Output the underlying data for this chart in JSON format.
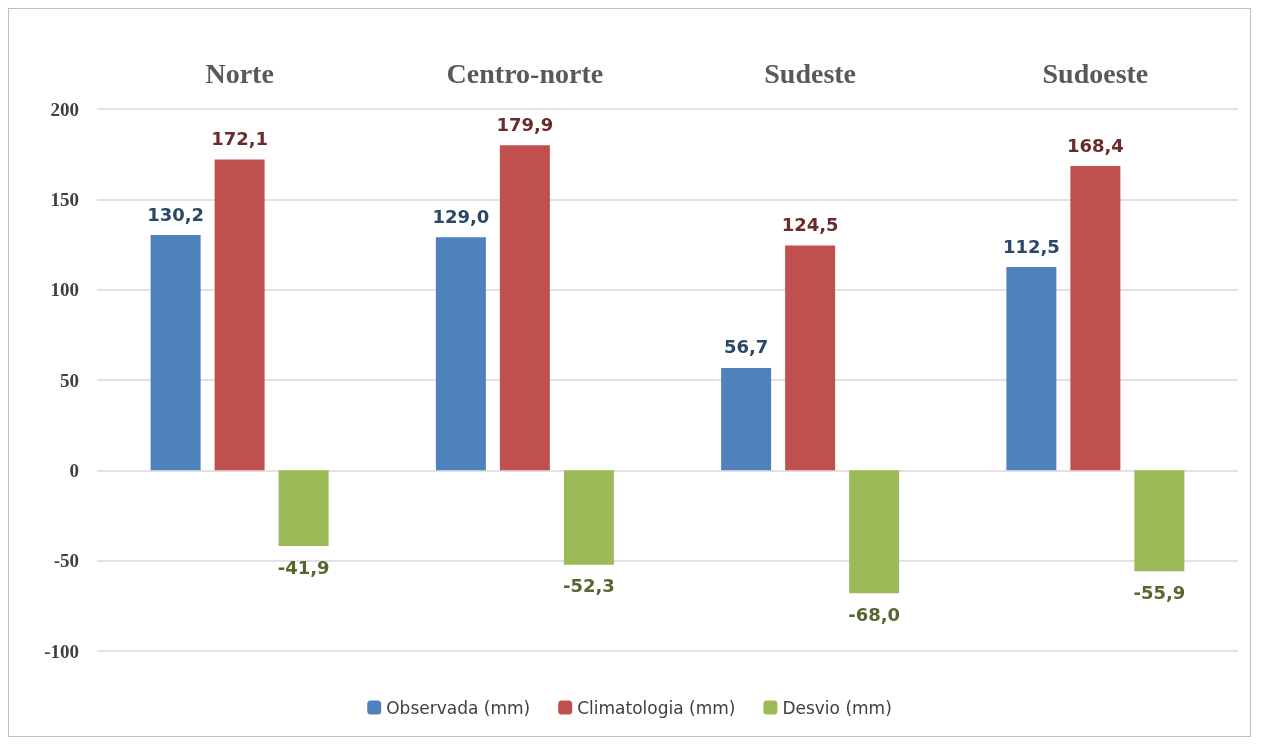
{
  "chart_data": {
    "type": "bar",
    "categories": [
      "Norte",
      "Centro-norte",
      "Sudeste",
      "Sudoeste"
    ],
    "series": [
      {
        "name": "Observada (mm)",
        "color": "#4f81bd",
        "values": [
          130.2,
          129.0,
          56.7,
          112.5
        ],
        "value_labels": [
          "130,2",
          "129,0",
          "56,7",
          "112,5"
        ]
      },
      {
        "name": "Climatologia (mm)",
        "color": "#c0504d",
        "values": [
          172.1,
          179.9,
          124.5,
          168.4
        ],
        "value_labels": [
          "172,1",
          "179,9",
          "124,5",
          "168,4"
        ]
      },
      {
        "name": "Desvio (mm)",
        "color": "#9bbb59",
        "values": [
          -41.9,
          -52.3,
          -68.0,
          -55.9
        ],
        "value_labels": [
          "-41,9",
          "-52,3",
          "-68,0",
          "-55,9"
        ]
      }
    ],
    "ylim": [
      -100,
      200
    ],
    "yticks": [
      -100,
      -50,
      0,
      50,
      100,
      150,
      200
    ],
    "grid": "y",
    "legend": "bottom"
  }
}
